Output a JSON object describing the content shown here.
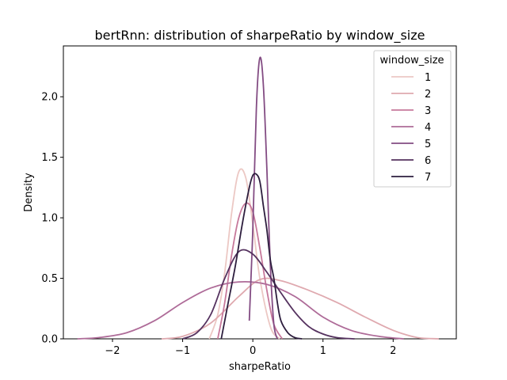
{
  "chart_data": {
    "type": "line",
    "title": "bertRnn: distribution of sharpeRatio by window_size",
    "xlabel": "sharpeRatio",
    "ylabel": "Density",
    "xlim": [
      -2.7,
      2.9
    ],
    "ylim": [
      0,
      2.42
    ],
    "xticks": [
      -2,
      -1,
      0,
      1,
      2
    ],
    "xtick_labels": [
      "−2",
      "−1",
      "0",
      "1",
      "2"
    ],
    "yticks": [
      0.0,
      0.5,
      1.0,
      1.5,
      2.0
    ],
    "ytick_labels": [
      "0.0",
      "0.5",
      "1.0",
      "1.5",
      "2.0"
    ],
    "grid": false,
    "legend": {
      "title": "window_size",
      "placement": "top-right"
    },
    "series": [
      {
        "name": "1",
        "color": "#ecc8c4",
        "x": [
          -0.62,
          -0.5,
          -0.4,
          -0.3,
          -0.2,
          -0.1,
          0.0,
          0.1,
          0.25,
          0.38
        ],
        "y": [
          0.0,
          0.2,
          0.55,
          1.05,
          1.38,
          1.33,
          0.95,
          0.5,
          0.1,
          0.0
        ]
      },
      {
        "name": "2",
        "color": "#dfa9af",
        "x": [
          -1.3,
          -1.0,
          -0.6,
          -0.2,
          0.1,
          0.4,
          0.8,
          1.2,
          1.6,
          2.0,
          2.35,
          2.65
        ],
        "y": [
          0.0,
          0.02,
          0.13,
          0.35,
          0.49,
          0.48,
          0.4,
          0.3,
          0.18,
          0.07,
          0.01,
          0.0
        ]
      },
      {
        "name": "3",
        "color": "#c7799b",
        "x": [
          -0.5,
          -0.4,
          -0.3,
          -0.2,
          -0.1,
          0.0,
          0.1,
          0.2,
          0.3,
          0.42
        ],
        "y": [
          0.0,
          0.3,
          0.7,
          1.0,
          1.12,
          1.05,
          0.75,
          0.4,
          0.12,
          0.0
        ]
      },
      {
        "name": "4",
        "color": "#ae6b98",
        "x": [
          -2.5,
          -2.2,
          -1.8,
          -1.4,
          -1.0,
          -0.6,
          -0.2,
          0.2,
          0.6,
          1.0,
          1.4,
          1.8,
          2.15
        ],
        "y": [
          0.0,
          0.01,
          0.05,
          0.15,
          0.3,
          0.42,
          0.47,
          0.45,
          0.35,
          0.18,
          0.07,
          0.02,
          0.0
        ]
      },
      {
        "name": "5",
        "color": "#834c83",
        "x": [
          -0.05,
          0.0,
          0.05,
          0.1,
          0.15,
          0.2,
          0.25,
          0.3,
          0.35
        ],
        "y": [
          0.15,
          0.9,
          1.9,
          2.32,
          2.1,
          1.4,
          0.6,
          0.12,
          0.0
        ]
      },
      {
        "name": "6",
        "color": "#55325f",
        "x": [
          -1.0,
          -0.8,
          -0.6,
          -0.4,
          -0.2,
          0.0,
          0.2,
          0.4,
          0.6,
          0.8,
          1.0,
          1.2,
          1.45
        ],
        "y": [
          0.0,
          0.05,
          0.2,
          0.5,
          0.72,
          0.7,
          0.55,
          0.38,
          0.22,
          0.1,
          0.04,
          0.01,
          0.0
        ]
      },
      {
        "name": "7",
        "color": "#2d1e3e",
        "x": [
          -0.45,
          -0.35,
          -0.25,
          -0.15,
          -0.05,
          0.0,
          0.05,
          0.1,
          0.15,
          0.2,
          0.25,
          0.3,
          0.35,
          0.4,
          0.5,
          0.6,
          0.7
        ],
        "y": [
          0.0,
          0.3,
          0.6,
          0.95,
          1.25,
          1.35,
          1.36,
          1.3,
          1.1,
          0.9,
          0.65,
          0.5,
          0.3,
          0.15,
          0.05,
          0.01,
          0.0
        ]
      }
    ]
  }
}
